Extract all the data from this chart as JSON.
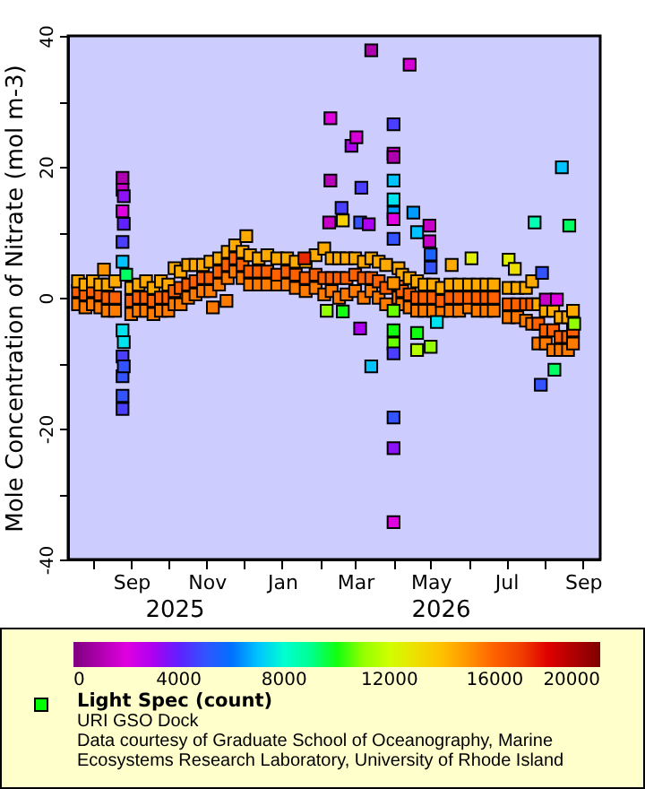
{
  "chart_data": {
    "type": "scatter",
    "ylabel": "Mole Concentration of Nitrate (mol m-3)",
    "clabel": "Light Spec (count)",
    "marker": "square",
    "annotations": [
      "2025",
      "2026",
      "URI GSO Dock",
      "Data courtesy of Graduate School of Oceanography, Marine Ecosystems Research Laboratory, University of Rhode Island"
    ],
    "xlim": [
      "2025-07-12",
      "2026-09-15"
    ],
    "xticks": [
      {
        "value": "2025-08-01",
        "label": null
      },
      {
        "value": "2025-09-01",
        "label": "Sep"
      },
      {
        "value": "2025-10-01",
        "label": null
      },
      {
        "value": "2025-11-01",
        "label": "Nov"
      },
      {
        "value": "2025-12-01",
        "label": null
      },
      {
        "value": "2026-01-01",
        "label": "Jan"
      },
      {
        "value": "2026-02-01",
        "label": null
      },
      {
        "value": "2026-03-01",
        "label": "Mar"
      },
      {
        "value": "2026-04-01",
        "label": null
      },
      {
        "value": "2026-05-01",
        "label": "May"
      },
      {
        "value": "2026-06-01",
        "label": null
      },
      {
        "value": "2026-07-01",
        "label": "Jul"
      },
      {
        "value": "2026-08-01",
        "label": null
      },
      {
        "value": "2026-09-01",
        "label": "Sep"
      }
    ],
    "ylim": [
      -40,
      40
    ],
    "yticks": [
      -40,
      {
        "value": -30,
        "label": null
      },
      -20,
      {
        "value": -10,
        "label": null
      },
      0,
      {
        "value": 10,
        "label": null
      },
      20,
      {
        "value": 30,
        "label": null
      },
      40
    ],
    "clim": [
      0,
      20000
    ],
    "cticks": [
      0,
      4000,
      8000,
      12000,
      16000,
      20000
    ],
    "x": [
      "2025-07-20",
      "2025-07-20",
      "2025-07-20",
      "2025-07-26",
      "2025-07-26",
      "2025-07-26",
      "2025-08-01",
      "2025-08-01",
      "2025-08-01",
      "2025-08-07",
      "2025-08-07",
      "2025-08-07",
      "2025-08-13",
      "2025-08-13",
      "2025-08-13",
      "2025-08-19",
      "2025-08-19",
      "2025-08-19",
      "2025-09-01",
      "2025-09-01",
      "2025-09-01",
      "2025-09-07",
      "2025-09-07",
      "2025-09-07",
      "2025-09-13",
      "2025-09-13",
      "2025-09-13",
      "2025-09-19",
      "2025-09-19",
      "2025-09-19",
      "2025-09-25",
      "2025-09-25",
      "2025-09-25",
      "2025-10-01",
      "2025-10-01",
      "2025-10-01",
      "2025-10-06",
      "2025-10-06",
      "2025-10-06",
      "2025-10-11",
      "2025-10-11",
      "2025-10-11",
      "2025-10-17",
      "2025-10-17",
      "2025-10-17",
      "2025-10-23",
      "2025-10-23",
      "2025-10-23",
      "2025-10-29",
      "2025-10-29",
      "2025-10-29",
      "2025-11-04",
      "2025-11-04",
      "2025-11-04",
      "2025-11-11",
      "2025-11-11",
      "2025-11-11",
      "2025-11-18",
      "2025-11-18",
      "2025-11-18",
      "2025-11-24",
      "2025-11-24",
      "2025-11-24",
      "2025-11-30",
      "2025-11-30",
      "2025-11-30",
      "2025-12-06",
      "2025-12-06",
      "2025-12-06",
      "2025-12-13",
      "2025-12-13",
      "2025-12-13",
      "2025-12-20",
      "2025-12-20",
      "2025-12-20",
      "2025-12-28",
      "2025-12-28",
      "2025-12-28",
      "2026-01-05",
      "2026-01-05",
      "2026-01-05",
      "2026-01-12",
      "2026-01-12",
      "2026-01-12",
      "2026-01-20",
      "2026-01-20",
      "2026-01-20",
      "2026-01-28",
      "2026-01-28",
      "2026-01-28",
      "2026-02-04",
      "2026-02-04",
      "2026-02-04",
      "2026-02-10",
      "2026-02-10",
      "2026-02-10",
      "2026-02-16",
      "2026-02-16",
      "2026-02-16",
      "2026-02-22",
      "2026-02-22",
      "2026-02-22",
      "2026-03-01",
      "2026-03-01",
      "2026-03-01",
      "2026-03-08",
      "2026-03-08",
      "2026-03-08",
      "2026-03-14",
      "2026-03-14",
      "2026-03-14",
      "2026-03-20",
      "2026-03-20",
      "2026-03-20",
      "2026-03-26",
      "2026-03-26",
      "2026-03-26",
      "2026-04-05",
      "2026-04-05",
      "2026-04-05",
      "2026-04-08",
      "2026-04-08",
      "2026-04-08",
      "2026-04-14",
      "2026-04-14",
      "2026-04-14",
      "2026-04-20",
      "2026-04-20",
      "2026-04-20",
      "2026-04-26",
      "2026-04-26",
      "2026-04-26",
      "2026-05-03",
      "2026-05-03",
      "2026-05-03",
      "2026-05-10",
      "2026-05-10",
      "2026-05-10",
      "2026-05-17",
      "2026-05-17",
      "2026-05-17",
      "2026-05-24",
      "2026-05-24",
      "2026-05-24",
      "2026-06-01",
      "2026-06-01",
      "2026-06-01",
      "2026-06-08",
      "2026-06-08",
      "2026-06-08",
      "2026-06-15",
      "2026-06-15",
      "2026-06-15",
      "2026-06-21",
      "2026-06-21",
      "2026-06-21",
      "2026-07-03",
      "2026-07-03",
      "2026-07-03",
      "2026-07-10",
      "2026-07-10",
      "2026-07-10",
      "2026-07-17",
      "2026-07-17",
      "2026-07-17",
      "2026-07-22",
      "2026-07-22",
      "2026-07-22",
      "2026-07-27",
      "2026-07-27",
      "2026-07-27",
      "2026-08-02",
      "2026-08-02",
      "2026-08-02",
      "2026-08-08",
      "2026-08-08",
      "2026-08-08",
      "2026-08-14",
      "2026-08-14",
      "2026-08-14",
      "2026-08-20",
      "2026-08-20",
      "2026-08-20",
      "2026-08-24",
      "2026-08-24",
      "2026-08-24",
      "2025-08-10",
      "2025-08-25",
      "2025-08-25",
      "2025-08-25",
      "2025-08-25",
      "2025-08-25",
      "2025-08-25",
      "2025-08-25",
      "2025-08-25",
      "2025-08-25",
      "2025-08-25",
      "2025-08-26",
      "2025-08-26",
      "2025-08-28",
      "2025-08-26",
      "2025-08-26",
      "2025-11-06",
      "2025-11-17",
      "2025-12-03",
      "2026-01-19",
      "2026-02-06",
      "2026-02-08",
      "2026-02-09",
      "2026-02-09",
      "2026-02-18",
      "2026-02-19",
      "2026-02-19",
      "2026-02-26",
      "2026-03-02",
      "2026-03-05",
      "2026-03-05",
      "2026-03-06",
      "2026-03-12",
      "2026-03-14",
      "2026-03-14",
      "2026-04-01",
      "2026-04-01",
      "2026-04-01",
      "2026-04-01",
      "2026-04-01",
      "2026-04-01",
      "2026-04-01",
      "2026-04-01",
      "2026-04-01",
      "2026-04-01",
      "2026-04-01",
      "2026-04-01",
      "2026-04-01",
      "2026-04-01",
      "2026-04-01",
      "2026-04-01",
      "2026-04-14",
      "2026-04-17",
      "2026-04-20",
      "2026-04-20",
      "2026-04-20",
      "2026-04-30",
      "2026-04-30",
      "2026-05-01",
      "2026-05-01",
      "2026-05-01",
      "2026-05-06",
      "2026-05-18",
      "2026-06-03",
      "2026-07-03",
      "2026-07-08",
      "2026-07-24",
      "2026-07-29",
      "2026-07-30",
      "2026-08-02",
      "2026-08-09",
      "2026-08-11",
      "2026-08-15",
      "2026-08-21",
      "2026-08-25"
    ],
    "values": [
      -1,
      1,
      2.5,
      -1.5,
      0.5,
      2,
      -1,
      1,
      2.5,
      -1.5,
      0.5,
      2,
      -2,
      0,
      2,
      -2,
      0,
      2.5,
      -2.5,
      -0.5,
      1.5,
      -2,
      0,
      2,
      -2,
      0,
      2.5,
      -2.5,
      -0.5,
      1.5,
      -2,
      0,
      2.5,
      -2,
      0,
      2,
      -1,
      1,
      4.5,
      -1,
      1.5,
      4,
      0,
      2,
      5,
      0.5,
      2.5,
      5,
      1,
      3,
      5,
      1,
      3,
      5.5,
      2,
      4,
      6,
      3,
      5,
      7,
      4,
      6,
      8,
      3,
      5,
      7,
      2,
      4,
      6.5,
      2,
      4,
      6,
      2,
      4,
      6.5,
      2,
      3.5,
      6,
      2,
      4,
      6,
      1.5,
      3.5,
      5.5,
      1,
      3,
      5.5,
      1.5,
      3.5,
      6.5,
      0.5,
      3,
      7.5,
      1,
      3,
      6,
      0,
      3,
      6,
      0.5,
      3,
      6,
      1,
      3.5,
      6,
      0,
      3,
      5.5,
      1,
      3,
      6,
      0,
      2.5,
      5.5,
      -1,
      1.5,
      5,
      0,
      2,
      4.5,
      -1,
      1,
      3.5,
      -1.5,
      0.5,
      3,
      -2,
      0,
      2.5,
      -2,
      0,
      2,
      -2,
      0,
      2,
      -2,
      -0.5,
      1.5,
      -2,
      0,
      2,
      -2,
      0,
      2,
      -1.5,
      0,
      2,
      -2,
      0,
      2,
      -2,
      0,
      2,
      -2,
      0,
      2,
      -3,
      -1,
      1.5,
      -3,
      -1,
      1.5,
      -3.5,
      -1,
      1.5,
      -4,
      -1,
      2.5,
      -7,
      -4,
      -1,
      -7,
      -5,
      -2,
      -8,
      -5,
      -2,
      -8,
      -6,
      -3,
      -8,
      -6,
      -3,
      -7,
      -5,
      -2,
      4.3,
      18.3,
      16.5,
      13.2,
      8.5,
      5.5,
      -5,
      -9,
      -12,
      -15,
      -17,
      15.5,
      11.3,
      3.5,
      -6.8,
      -10.5,
      -1.5,
      -0.5,
      9.4,
      6,
      -2,
      11.5,
      27.4,
      17.9,
      13.7,
      11.8,
      -2.1,
      23.2,
      24.5,
      11.5,
      -4.7,
      16.8,
      11.2,
      37.8,
      -10.5,
      26.5,
      22,
      21.5,
      17.9,
      15,
      13,
      12,
      9,
      2.2,
      -2,
      -5,
      -7,
      -8.5,
      -18.3,
      -23,
      -34.3,
      35.6,
      13,
      10,
      -5.4,
      -8,
      11,
      8.6,
      6.6,
      4.6,
      -7.5,
      -3.7,
      5,
      6,
      5.8,
      4.4,
      11.5,
      -13.3,
      3.8,
      -0.3,
      -11,
      -0.3,
      19.9,
      11,
      -4
    ],
    "cvalues": [
      15500,
      16000,
      14500,
      15500,
      16000,
      14500,
      15500,
      16000,
      14500,
      15500,
      16000,
      14500,
      15500,
      16000,
      14500,
      15500,
      16000,
      14500,
      15500,
      16000,
      14500,
      15500,
      16000,
      14500,
      15500,
      16000,
      14500,
      15500,
      16000,
      14500,
      15500,
      16000,
      14500,
      15500,
      16000,
      14500,
      15500,
      16000,
      14500,
      15500,
      16000,
      14500,
      15500,
      16000,
      14500,
      15500,
      16000,
      14500,
      15500,
      16000,
      14500,
      15500,
      16000,
      14500,
      15500,
      16000,
      14500,
      15500,
      16000,
      14500,
      15500,
      16000,
      14500,
      15500,
      16000,
      14500,
      15500,
      16000,
      14500,
      15500,
      16000,
      14500,
      15500,
      16000,
      14500,
      15500,
      16000,
      14500,
      15500,
      16000,
      14500,
      15500,
      16000,
      14500,
      15500,
      16000,
      14500,
      15500,
      16000,
      14500,
      15500,
      16000,
      14500,
      15500,
      16000,
      14500,
      15500,
      16000,
      14500,
      15500,
      16000,
      14500,
      15500,
      16000,
      14500,
      15500,
      16000,
      14500,
      15500,
      16000,
      14500,
      15500,
      16000,
      14500,
      15500,
      16000,
      14500,
      15500,
      16000,
      14500,
      15500,
      16000,
      14500,
      15500,
      16000,
      14500,
      15500,
      16000,
      14500,
      15500,
      16000,
      14500,
      15500,
      16000,
      14500,
      15500,
      16000,
      14500,
      15500,
      16000,
      14500,
      15500,
      16000,
      14500,
      15500,
      16000,
      14500,
      15500,
      16000,
      14500,
      15500,
      16000,
      14500,
      15500,
      16000,
      14500,
      15500,
      16000,
      14500,
      15500,
      16000,
      14500,
      15500,
      16000,
      14500,
      15500,
      16000,
      14500,
      15500,
      16000,
      14500,
      15500,
      16000,
      14500,
      15500,
      16000,
      14500,
      15500,
      16000,
      14500,
      15500,
      16000,
      14500,
      15500,
      16000,
      14500,
      15000,
      1000,
      1500,
      2000,
      4500,
      7000,
      7500,
      4500,
      5000,
      5000,
      4500,
      3500,
      4000,
      9500,
      7500,
      5000,
      15500,
      15500,
      14500,
      17500,
      11000,
      1500,
      2000,
      1200,
      4500,
      13500,
      10000,
      3000,
      1800,
      5000,
      3000,
      4500,
      3000,
      1000,
      7000,
      4500,
      2000,
      1000,
      7000,
      7500,
      6500,
      2000,
      5000,
      15000,
      10500,
      10000,
      10500,
      4500,
      5000,
      3500,
      2000,
      1800,
      6500,
      7000,
      10000,
      11500,
      1500,
      1500,
      5500,
      5000,
      11000,
      7500,
      14500,
      12500,
      12500,
      13000,
      8500,
      5000,
      5000,
      1500,
      9500,
      2000,
      7000,
      9500,
      11000
    ]
  }
}
